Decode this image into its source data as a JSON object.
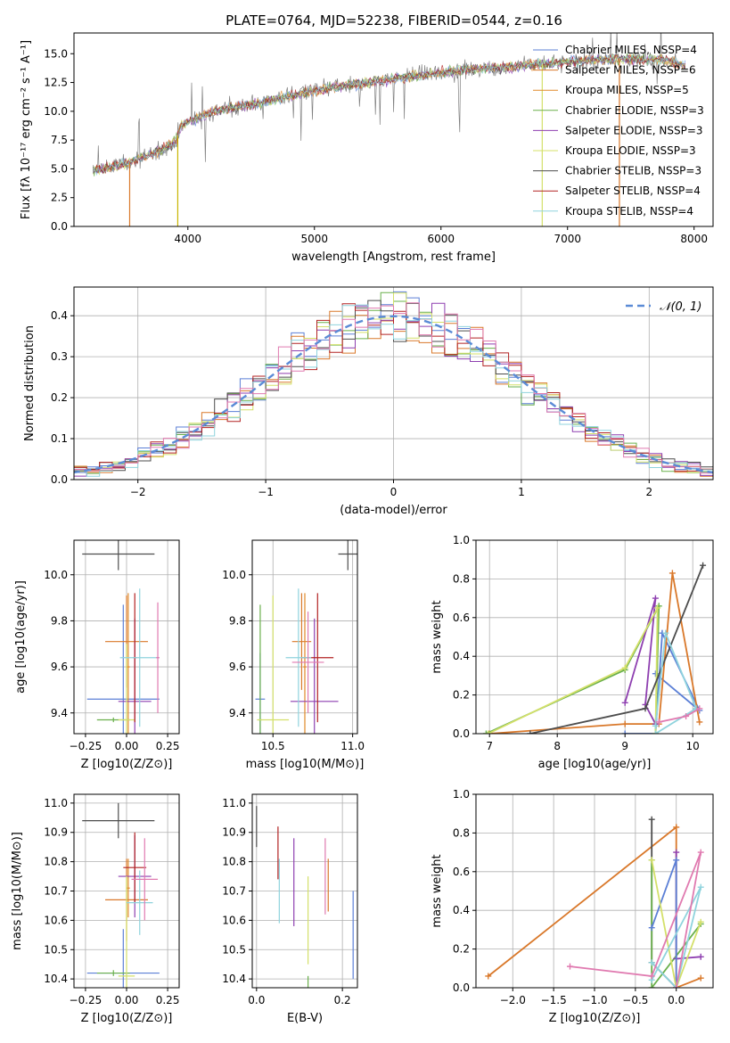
{
  "figure_title": "PLATE=0764, MJD=52238, FIBERID=0544, z=0.16",
  "colors": {
    "Chabrier MILES": "#5b7fd6",
    "Salpeter MILES": "#d9782a",
    "Kroupa MILES": "#e08a2a",
    "Chabrier ELODIE": "#6ab04c",
    "Salpeter ELODIE": "#8e3fb0",
    "Kroupa ELODIE": "#d4e06a",
    "Chabrier STELIB": "#4d4d4d",
    "Salpeter STELIB": "#b22222",
    "Kroupa STELIB": "#8fd3dd",
    "pink": "#e07ab0",
    "gaussian": "#5b8bd6"
  },
  "chart_data": [
    {
      "type": "line",
      "title": "PLATE=0764, MJD=52238, FIBERID=0544, z=0.16",
      "xlabel": "wavelength [Angstrom, rest frame]",
      "ylabel": "Flux [fλ 10⁻¹⁷ erg cm⁻² s⁻¹ A⁻¹]",
      "xlim": [
        3100,
        8150
      ],
      "ylim": [
        0,
        16.8
      ],
      "xticks": [
        4000,
        5000,
        6000,
        7000,
        8000
      ],
      "yticks": [
        0.0,
        2.5,
        5.0,
        7.5,
        10.0,
        12.5,
        15.0
      ],
      "legend": [
        "Chabrier MILES, NSSP=4",
        "Salpeter MILES, NSSP=6",
        "Kroupa MILES, NSSP=5",
        "Chabrier ELODIE, NSSP=3",
        "Salpeter ELODIE, NSSP=3",
        "Kroupa ELODIE, NSSP=3",
        "Chabrier STELIB, NSSP=3",
        "Salpeter STELIB, NSSP=4",
        "Kroupa STELIB, NSSP=4"
      ],
      "continuum": [
        [
          3250,
          4.8
        ],
        [
          3500,
          5.4
        ],
        [
          3700,
          6.2
        ],
        [
          3900,
          7.3
        ],
        [
          3950,
          8.8
        ],
        [
          4200,
          10.0
        ],
        [
          4500,
          10.6
        ],
        [
          4800,
          11.3
        ],
        [
          5000,
          11.8
        ],
        [
          5300,
          12.3
        ],
        [
          5600,
          12.8
        ],
        [
          5900,
          13.2
        ],
        [
          6200,
          13.6
        ],
        [
          6600,
          13.9
        ],
        [
          7000,
          14.3
        ],
        [
          7400,
          14.6
        ],
        [
          7800,
          14.4
        ],
        [
          7930,
          13.9
        ]
      ],
      "dips": [
        [
          3540,
          0
        ],
        [
          3920,
          0
        ],
        [
          6800,
          0
        ],
        [
          7410,
          0
        ]
      ]
    },
    {
      "type": "histogram",
      "xlabel": "(data-model)/error",
      "ylabel": "Normed distribution",
      "xlim": [
        -2.5,
        2.5
      ],
      "ylim": [
        0,
        0.47
      ],
      "xticks": [
        -2,
        -1,
        0,
        1,
        2
      ],
      "yticks": [
        0.0,
        0.1,
        0.2,
        0.3,
        0.4
      ],
      "legend": [
        "𝒩(0, 1)"
      ],
      "bin_width": 0.1
    },
    {
      "type": "scatter",
      "xlabel": "Z [log10(Z/Z⊙)]",
      "ylabel": "age  [log10(age/yr)]",
      "xlim": [
        -0.32,
        0.32
      ],
      "ylim": [
        9.31,
        10.15
      ],
      "xticks": [
        -0.25,
        0.0,
        0.25
      ],
      "xtick_labels": [
        "−0.25",
        "0.00",
        "0.25"
      ],
      "yticks": [
        9.4,
        9.6,
        9.8,
        10.0
      ],
      "points": [
        {
          "x": -0.02,
          "y": 9.46,
          "ex": 0.22,
          "ey": 0.41,
          "c": "Chabrier MILES"
        },
        {
          "x": 0.0,
          "y": 9.71,
          "ex": 0.13,
          "ey": 0.2,
          "c": "Salpeter MILES"
        },
        {
          "x": 0.01,
          "y": 9.6,
          "ex": 0.01,
          "ey": 0.32,
          "c": "Kroupa MILES"
        },
        {
          "x": -0.08,
          "y": 9.37,
          "ex": 0.1,
          "ey": 0.01,
          "c": "Chabrier ELODIE"
        },
        {
          "x": 0.05,
          "y": 9.45,
          "ex": 0.1,
          "ey": 0.36,
          "c": "Salpeter ELODIE"
        },
        {
          "x": 0.0,
          "y": 9.37,
          "ex": 0.05,
          "ey": 0.33,
          "c": "Kroupa ELODIE"
        },
        {
          "x": -0.05,
          "y": 10.09,
          "ex": 0.22,
          "ey": 0.07,
          "c": "Chabrier STELIB"
        },
        {
          "x": 0.05,
          "y": 9.64,
          "ex": 0.01,
          "ey": 0.28,
          "c": "Salpeter STELIB"
        },
        {
          "x": 0.08,
          "y": 9.64,
          "ex": 0.12,
          "ey": 0.3,
          "c": "Kroupa STELIB"
        },
        {
          "x": 0.19,
          "y": 9.64,
          "ex": 0.01,
          "ey": 0.24,
          "c": "pink"
        }
      ]
    },
    {
      "type": "scatter",
      "xlabel": "mass [log10(M/M⊙)]",
      "ylabel": "",
      "xlim": [
        10.37,
        11.03
      ],
      "ylim": [
        9.31,
        10.15
      ],
      "xticks": [
        10.5,
        11.0
      ],
      "xtick_labels": [
        "10.5",
        "11.0"
      ],
      "yticks": [
        9.4,
        9.6,
        9.8,
        10.0
      ],
      "points": [
        {
          "x": 10.42,
          "y": 9.46,
          "ex": 0.03,
          "ey": 0.2,
          "c": "Chabrier MILES"
        },
        {
          "x": 10.68,
          "y": 9.71,
          "ex": 0.06,
          "ey": 0.21,
          "c": "Salpeter MILES"
        },
        {
          "x": 10.7,
          "y": 9.6,
          "ex": 0.01,
          "ey": 0.32,
          "c": "Kroupa MILES"
        },
        {
          "x": 10.42,
          "y": 9.37,
          "ex": 0.01,
          "ey": 0.5,
          "c": "Chabrier ELODIE"
        },
        {
          "x": 10.76,
          "y": 9.45,
          "ex": 0.15,
          "ey": 0.36,
          "c": "Salpeter ELODIE"
        },
        {
          "x": 10.5,
          "y": 9.37,
          "ex": 0.1,
          "ey": 0.54,
          "c": "Kroupa ELODIE"
        },
        {
          "x": 10.97,
          "y": 10.09,
          "ex": 0.06,
          "ey": 0.07,
          "c": "Chabrier STELIB"
        },
        {
          "x": 10.78,
          "y": 9.64,
          "ex": 0.1,
          "ey": 0.28,
          "c": "Salpeter STELIB"
        },
        {
          "x": 10.66,
          "y": 9.64,
          "ex": 0.08,
          "ey": 0.3,
          "c": "Kroupa STELIB"
        },
        {
          "x": 10.72,
          "y": 9.62,
          "ex": 0.1,
          "ey": 0.22,
          "c": "pink"
        }
      ]
    },
    {
      "type": "line",
      "xlabel": "age  [log10(age/yr)]",
      "ylabel": "mass weight",
      "xlim": [
        6.8,
        10.3
      ],
      "ylim": [
        0,
        1.0
      ],
      "xticks": [
        7,
        8,
        9,
        10
      ],
      "yticks": [
        0.0,
        0.2,
        0.4,
        0.6,
        0.8,
        1.0
      ],
      "series": [
        {
          "c": "Chabrier MILES",
          "pts": [
            [
              9.0,
              0.0
            ],
            [
              9.45,
              0.0
            ],
            [
              9.55,
              0.52
            ],
            [
              10.1,
              0.12
            ],
            [
              9.45,
              0.31
            ]
          ]
        },
        {
          "c": "Salpeter MILES",
          "pts": [
            [
              7.0,
              0.0
            ],
            [
              9.0,
              0.05
            ],
            [
              9.5,
              0.05
            ],
            [
              9.7,
              0.83
            ],
            [
              10.1,
              0.06
            ]
          ]
        },
        {
          "c": "Chabrier ELODIE",
          "pts": [
            [
              6.95,
              0.0
            ],
            [
              9.0,
              0.33
            ],
            [
              9.5,
              0.66
            ],
            [
              9.45,
              0.0
            ]
          ]
        },
        {
          "c": "Salpeter ELODIE",
          "pts": [
            [
              9.0,
              0.16
            ],
            [
              9.45,
              0.7
            ],
            [
              9.3,
              0.15
            ],
            [
              9.45,
              0.05
            ]
          ]
        },
        {
          "c": "Kroupa ELODIE",
          "pts": [
            [
              6.98,
              0.0
            ],
            [
              9.0,
              0.34
            ],
            [
              9.48,
              0.65
            ],
            [
              9.45,
              0.0
            ]
          ]
        },
        {
          "c": "Chabrier STELIB",
          "pts": [
            [
              7.6,
              0.0
            ],
            [
              9.3,
              0.13
            ],
            [
              10.15,
              0.87
            ]
          ]
        },
        {
          "c": "Kroupa STELIB",
          "pts": [
            [
              9.45,
              0.04
            ],
            [
              9.6,
              0.52
            ],
            [
              10.05,
              0.13
            ],
            [
              9.45,
              0.0
            ]
          ]
        },
        {
          "c": "pink",
          "pts": [
            [
              9.5,
              0.06
            ],
            [
              9.9,
              0.09
            ],
            [
              10.1,
              0.13
            ]
          ]
        }
      ]
    },
    {
      "type": "scatter",
      "xlabel": "Z [log10(Z/Z⊙)]",
      "ylabel": "mass [log10(M/M⊙)]",
      "xlim": [
        -0.32,
        0.32
      ],
      "ylim": [
        10.37,
        11.03
      ],
      "xticks": [
        -0.25,
        0.0,
        0.25
      ],
      "xtick_labels": [
        "−0.25",
        "0.00",
        "0.25"
      ],
      "yticks": [
        10.4,
        10.5,
        10.6,
        10.7,
        10.8,
        10.9,
        11.0
      ],
      "points": [
        {
          "x": -0.02,
          "y": 10.42,
          "ex": 0.22,
          "ey": 0.15,
          "c": "Chabrier MILES"
        },
        {
          "x": 0.0,
          "y": 10.67,
          "ex": 0.13,
          "ey": 0.14,
          "c": "Salpeter MILES"
        },
        {
          "x": 0.01,
          "y": 10.71,
          "ex": 0.01,
          "ey": 0.1,
          "c": "Kroupa MILES"
        },
        {
          "x": -0.08,
          "y": 10.42,
          "ex": 0.1,
          "ey": 0.01,
          "c": "Chabrier ELODIE"
        },
        {
          "x": 0.05,
          "y": 10.75,
          "ex": 0.1,
          "ey": 0.14,
          "c": "Salpeter ELODIE"
        },
        {
          "x": 0.0,
          "y": 10.41,
          "ex": 0.05,
          "ey": 0.34,
          "c": "Kroupa ELODIE"
        },
        {
          "x": -0.05,
          "y": 10.94,
          "ex": 0.22,
          "ey": 0.06,
          "c": "Chabrier STELIB"
        },
        {
          "x": 0.05,
          "y": 10.78,
          "ex": 0.07,
          "ey": 0.12,
          "c": "Salpeter STELIB"
        },
        {
          "x": 0.08,
          "y": 10.66,
          "ex": 0.08,
          "ey": 0.11,
          "c": "Kroupa STELIB"
        },
        {
          "x": 0.11,
          "y": 10.74,
          "ex": 0.08,
          "ey": 0.14,
          "c": "pink"
        }
      ]
    },
    {
      "type": "errorbar",
      "xlabel": "E(B-V)",
      "ylabel": "",
      "xlim": [
        -0.01,
        0.235
      ],
      "ylim": [
        10.37,
        11.03
      ],
      "xticks": [
        0.0,
        0.2
      ],
      "xtick_labels": [
        "0.0",
        "0.2"
      ],
      "yticks": [
        10.4,
        10.5,
        10.6,
        10.7,
        10.8,
        10.9,
        11.0
      ],
      "points": [
        {
          "x": 0.0,
          "y": 10.92,
          "ey": 0.07,
          "c": "Chabrier STELIB"
        },
        {
          "x": 0.05,
          "y": 10.83,
          "ey": 0.09,
          "c": "Salpeter STELIB"
        },
        {
          "x": 0.053,
          "y": 10.7,
          "ey": 0.11,
          "c": "Kroupa STELIB"
        },
        {
          "x": 0.087,
          "y": 10.73,
          "ey": 0.15,
          "c": "Salpeter ELODIE"
        },
        {
          "x": 0.12,
          "y": 10.6,
          "ey": 0.15,
          "c": "Kroupa ELODIE"
        },
        {
          "x": 0.12,
          "y": 10.39,
          "ey": 0.02,
          "c": "Chabrier ELODIE"
        },
        {
          "x": 0.16,
          "y": 10.75,
          "ey": 0.13,
          "c": "pink"
        },
        {
          "x": 0.167,
          "y": 10.72,
          "ey": 0.09,
          "c": "Salpeter MILES"
        },
        {
          "x": 0.225,
          "y": 10.55,
          "ey": 0.15,
          "c": "Chabrier MILES"
        }
      ]
    },
    {
      "type": "line",
      "xlabel": "Z [log10(Z/Z⊙)]",
      "ylabel": "mass weight",
      "xlim": [
        -2.45,
        0.45
      ],
      "ylim": [
        0,
        1.0
      ],
      "xticks": [
        -2.0,
        -1.5,
        -1.0,
        -0.5,
        0.0
      ],
      "xtick_labels": [
        "−2.0",
        "−1.5",
        "−1.0",
        "−0.5",
        "0.0"
      ],
      "yticks": [
        0.0,
        0.2,
        0.4,
        0.6,
        0.8,
        1.0
      ],
      "series": [
        {
          "c": "Salpeter MILES",
          "pts": [
            [
              -2.3,
              0.06
            ],
            [
              0.0,
              0.83
            ],
            [
              0.0,
              0.0
            ],
            [
              0.3,
              0.05
            ]
          ]
        },
        {
          "c": "Chabrier STELIB",
          "pts": [
            [
              -0.3,
              0.87
            ],
            [
              -0.3,
              0.13
            ],
            [
              0.0,
              0.0
            ]
          ]
        },
        {
          "c": "Chabrier ELODIE",
          "pts": [
            [
              -0.3,
              0.66
            ],
            [
              -0.3,
              0.0
            ],
            [
              0.3,
              0.33
            ]
          ]
        },
        {
          "c": "Salpeter ELODIE",
          "pts": [
            [
              0.0,
              0.7
            ],
            [
              0.0,
              0.15
            ],
            [
              0.3,
              0.16
            ]
          ]
        },
        {
          "c": "Chabrier MILES",
          "pts": [
            [
              -0.3,
              0.31
            ],
            [
              0.0,
              0.66
            ],
            [
              0.0,
              0.0
            ]
          ]
        },
        {
          "c": "Kroupa ELODIE",
          "pts": [
            [
              -0.3,
              0.66
            ],
            [
              0.0,
              0.0
            ],
            [
              0.3,
              0.34
            ]
          ]
        },
        {
          "c": "Kroupa STELIB",
          "pts": [
            [
              -0.3,
              0.04
            ],
            [
              0.3,
              0.52
            ],
            [
              0.0,
              0.0
            ],
            [
              -0.3,
              0.13
            ]
          ]
        },
        {
          "c": "pink",
          "pts": [
            [
              -1.3,
              0.11
            ],
            [
              -0.3,
              0.06
            ],
            [
              0.3,
              0.7
            ],
            [
              0.0,
              0.0
            ]
          ]
        }
      ]
    }
  ]
}
